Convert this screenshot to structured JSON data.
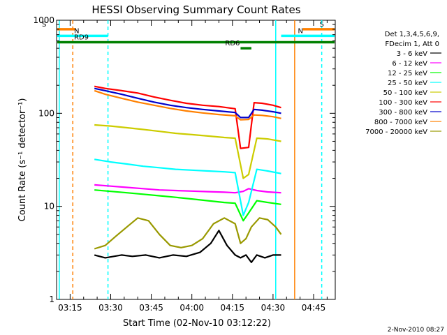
{
  "chart_data": {
    "type": "line",
    "title": "HESSI Observing Summary Count Rates",
    "xlabel": "Start Time (02-Nov-10 03:12:22)",
    "ylabel": "Count Rate (s⁻¹ detector⁻¹)",
    "x_unit": "time (UT)",
    "xlim": [
      "03:10",
      "04:53"
    ],
    "ylim": [
      1,
      1000
    ],
    "yscale": "log",
    "x_ticks": [
      "03:15",
      "03:30",
      "03:45",
      "04:00",
      "04:15",
      "04:30",
      "04:45"
    ],
    "y_ticks": [
      "1",
      "10",
      "100",
      "1000"
    ],
    "legend": {
      "position": "right",
      "header": [
        "Det 1,3,4,5,6,9,",
        "FDecim 1, Att 0"
      ]
    },
    "series": [
      {
        "name": "3 - 6 keV",
        "color": "#000000",
        "x": [
          "03:24",
          "03:28",
          "03:34",
          "03:38",
          "03:43",
          "03:48",
          "03:53",
          "03:58",
          "04:03",
          "04:07",
          "04:10",
          "04:13",
          "04:16",
          "04:18",
          "04:20",
          "04:22",
          "04:24",
          "04:27",
          "04:30",
          "04:33"
        ],
        "y": [
          3.0,
          2.8,
          3.0,
          2.9,
          3.0,
          2.8,
          3.0,
          2.9,
          3.2,
          4.0,
          5.5,
          3.8,
          3.0,
          2.8,
          3.0,
          2.5,
          3.0,
          2.8,
          3.0,
          3.0
        ]
      },
      {
        "name": "6 - 12 keV",
        "color": "#ff00ff",
        "x": [
          "03:24",
          "03:30",
          "03:36",
          "03:42",
          "03:48",
          "03:54",
          "04:00",
          "04:06",
          "04:12",
          "04:16",
          "04:19",
          "04:21",
          "04:24",
          "04:28",
          "04:33"
        ],
        "y": [
          17,
          16.5,
          16,
          15.5,
          15,
          14.8,
          14.6,
          14.4,
          14.2,
          14.0,
          14.5,
          15.5,
          14.8,
          14.3,
          14.0
        ]
      },
      {
        "name": "12 - 25 keV",
        "color": "#00ff00",
        "x": [
          "03:24",
          "03:30",
          "03:36",
          "03:42",
          "03:48",
          "03:54",
          "04:00",
          "04:06",
          "04:12",
          "04:16",
          "04:19",
          "04:21",
          "04:24",
          "04:28",
          "04:33"
        ],
        "y": [
          15,
          14.5,
          14,
          13.5,
          13,
          12.5,
          12,
          11.5,
          11,
          10.8,
          7.0,
          8.5,
          11.5,
          11.0,
          10.5
        ]
      },
      {
        "name": "25 - 50 keV",
        "color": "#00ffff",
        "x": [
          "03:24",
          "03:30",
          "03:36",
          "03:42",
          "03:48",
          "03:54",
          "04:00",
          "04:06",
          "04:12",
          "04:16",
          "04:19",
          "04:21",
          "04:24",
          "04:28",
          "04:33"
        ],
        "y": [
          32,
          30,
          28.5,
          27,
          26,
          25,
          24.5,
          24,
          23.5,
          23,
          8.0,
          11.0,
          25,
          24,
          22.5
        ]
      },
      {
        "name": "50 - 100 keV",
        "color": "#cccc00",
        "x": [
          "03:24",
          "03:30",
          "03:36",
          "03:42",
          "03:48",
          "03:54",
          "04:00",
          "04:06",
          "04:12",
          "04:16",
          "04:19",
          "04:21",
          "04:24",
          "04:28",
          "04:33"
        ],
        "y": [
          75,
          73,
          70,
          67,
          64,
          61,
          59,
          57,
          55,
          54,
          20,
          22,
          54,
          53,
          50
        ]
      },
      {
        "name": "100 - 300 keV",
        "color": "#ff0000",
        "x": [
          "03:24",
          "03:28",
          "03:34",
          "03:40",
          "03:46",
          "03:52",
          "03:58",
          "04:04",
          "04:10",
          "04:16",
          "04:18",
          "04:21",
          "04:23",
          "04:26",
          "04:30",
          "04:33"
        ],
        "y": [
          195,
          185,
          175,
          165,
          150,
          138,
          128,
          122,
          118,
          112,
          42,
          43,
          130,
          128,
          122,
          115
        ]
      },
      {
        "name": "300 - 800 keV",
        "color": "#0000cc",
        "x": [
          "03:24",
          "03:28",
          "03:34",
          "03:40",
          "03:46",
          "03:52",
          "03:58",
          "04:04",
          "04:10",
          "04:16",
          "04:18",
          "04:21",
          "04:23",
          "04:26",
          "04:30",
          "04:33"
        ],
        "y": [
          185,
          175,
          160,
          145,
          132,
          122,
          115,
          110,
          106,
          102,
          90,
          90,
          110,
          108,
          104,
          100
        ]
      },
      {
        "name": "800 - 7000 keV",
        "color": "#ff8000",
        "x": [
          "03:24",
          "03:28",
          "03:34",
          "03:40",
          "03:46",
          "03:52",
          "03:58",
          "04:04",
          "04:10",
          "04:16",
          "04:18",
          "04:21",
          "04:23",
          "04:26",
          "04:30",
          "04:33"
        ],
        "y": [
          175,
          160,
          145,
          132,
          122,
          113,
          106,
          101,
          97,
          94,
          85,
          86,
          96,
          95,
          92,
          88
        ]
      },
      {
        "name": "7000 - 20000 keV",
        "color": "#999900",
        "x": [
          "03:24",
          "03:28",
          "03:32",
          "03:36",
          "03:40",
          "03:44",
          "03:48",
          "03:52",
          "03:56",
          "04:00",
          "04:04",
          "04:08",
          "04:12",
          "04:16",
          "04:18",
          "04:20",
          "04:22",
          "04:25",
          "04:28",
          "04:31",
          "04:33"
        ],
        "y": [
          3.5,
          3.8,
          4.8,
          6.0,
          7.5,
          7.0,
          5.0,
          3.8,
          3.6,
          3.8,
          4.5,
          6.5,
          7.5,
          6.5,
          4.0,
          4.5,
          6.0,
          7.5,
          7.2,
          6.0,
          5.0
        ]
      }
    ],
    "annotations": {
      "intervals": [
        {
          "label": "S",
          "color": "#ff8000",
          "x": [
            "03:10",
            "03:17"
          ],
          "y": 800
        },
        {
          "label": "S",
          "color": "#ff8000",
          "x": [
            "04:41",
            "04:53"
          ],
          "y": 800
        },
        {
          "label": "N",
          "color": "#00ffff",
          "x": [
            "03:10",
            "03:29"
          ],
          "y": 680
        },
        {
          "label": "N",
          "color": "#00ffff",
          "x": [
            "04:33",
            "04:53"
          ],
          "y": 680
        },
        {
          "label": "RD9",
          "color": "#008000",
          "x": [
            "03:10",
            "04:53"
          ],
          "y": 580
        },
        {
          "label": "RD6",
          "color": "#008000",
          "x": [
            "04:18",
            "04:22"
          ],
          "y": 500
        }
      ],
      "vertical_lines": [
        {
          "x": "03:16",
          "color": "#ff8000",
          "dashed": true
        },
        {
          "x": "03:29",
          "color": "#00ffff",
          "dashed": true
        },
        {
          "x": "03:11",
          "color": "#00ffff",
          "dashed": false
        },
        {
          "x": "04:31",
          "color": "#00ffff",
          "dashed": false
        },
        {
          "x": "04:38",
          "color": "#ff8000",
          "dashed": false
        },
        {
          "x": "04:48",
          "color": "#00ffff",
          "dashed": true
        }
      ]
    },
    "footer": "2-Nov-2010 08:27"
  }
}
